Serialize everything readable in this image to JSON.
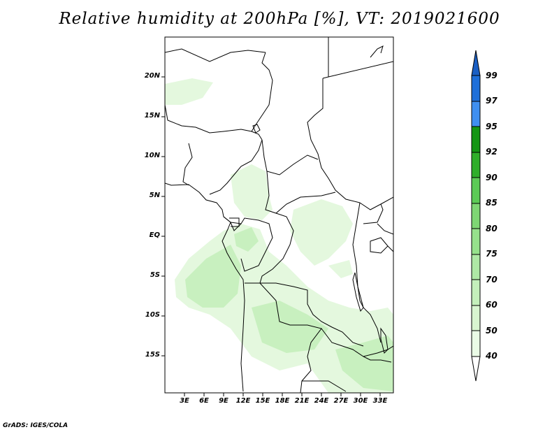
{
  "title": "Relative humidity at 200hPa [%], VT: 2019021600",
  "credit": "GrADS: IGES/COLA",
  "map": {
    "lat_labels": [
      "20N",
      "15N",
      "10N",
      "5N",
      "EQ",
      "5S",
      "10S",
      "15S"
    ],
    "lon_labels": [
      "3E",
      "6E",
      "9E",
      "12E",
      "15E",
      "18E",
      "21E",
      "24E",
      "27E",
      "30E",
      "33E"
    ],
    "lon_range": [
      0,
      35
    ],
    "lat_range": [
      -20,
      25
    ],
    "land_fill": "#ffffff",
    "border_color": "#000000"
  },
  "colorbar": {
    "levels": [
      "40",
      "50",
      "60",
      "70",
      "75",
      "80",
      "85",
      "90",
      "92",
      "95",
      "97",
      "99"
    ],
    "colors": [
      "#ffffff",
      "#eafbe6",
      "#d8f5d0",
      "#c4efbb",
      "#aee8a5",
      "#96e18c",
      "#7ed674",
      "#5ccb56",
      "#2fae2a",
      "#149614",
      "#3f8ff0",
      "#1e6fd9",
      "#1a5fc4"
    ]
  },
  "chart_data": {
    "type": "heatmap",
    "title": "Relative humidity at 200hPa [%], VT: 2019021600",
    "variable": "Relative humidity",
    "units": "%",
    "level": "200hPa",
    "valid_time": "2019021600",
    "x": [
      "3E",
      "6E",
      "9E",
      "12E",
      "15E",
      "18E",
      "21E",
      "24E",
      "27E",
      "30E",
      "33E"
    ],
    "y": [
      "20N",
      "15N",
      "10N",
      "5N",
      "EQ",
      "5S",
      "10S",
      "15S"
    ],
    "contour_levels": [
      40,
      50,
      60,
      70,
      75,
      80,
      85,
      90,
      92,
      95,
      97,
      99
    ],
    "xlim": [
      0,
      35
    ],
    "ylim": [
      -20,
      25
    ]
  }
}
